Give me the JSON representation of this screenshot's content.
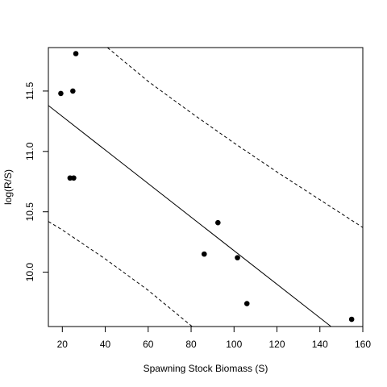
{
  "chart_data": {
    "type": "scatter",
    "title": "",
    "xlabel": "Spawning Stock Biomass (S)",
    "ylabel": "log(R/S)",
    "xlim": [
      13.5,
      160
    ],
    "ylim": [
      9.55,
      11.86
    ],
    "x_ticks": [
      20,
      40,
      60,
      80,
      100,
      120,
      140,
      160
    ],
    "x_tick_labels": [
      "20",
      "40",
      "60",
      "80",
      "100",
      "120",
      "140",
      "160"
    ],
    "y_ticks": [
      10.0,
      10.5,
      11.0,
      11.5
    ],
    "y_tick_labels": [
      "10.0",
      "10.5",
      "11.0",
      "11.5"
    ],
    "grid": false,
    "legend": "none",
    "points": [
      {
        "x": 19.3,
        "y": 11.48
      },
      {
        "x": 24.9,
        "y": 11.5
      },
      {
        "x": 26.3,
        "y": 11.81
      },
      {
        "x": 23.6,
        "y": 10.78
      },
      {
        "x": 25.3,
        "y": 10.78
      },
      {
        "x": 86.1,
        "y": 10.15
      },
      {
        "x": 92.5,
        "y": 10.41
      },
      {
        "x": 101.6,
        "y": 10.12
      },
      {
        "x": 106.0,
        "y": 9.74
      },
      {
        "x": 154.8,
        "y": 9.61
      }
    ],
    "fit_line": {
      "x": [
        13.5,
        145.2
      ],
      "y": [
        11.38,
        9.55
      ]
    },
    "upper_band": {
      "x": [
        41.0,
        60,
        80,
        100,
        120,
        140,
        160
      ],
      "y": [
        11.86,
        11.58,
        11.32,
        11.07,
        10.83,
        10.6,
        10.37
      ]
    },
    "lower_band": {
      "x": [
        13.5,
        20,
        40,
        60,
        80.5
      ],
      "y": [
        10.42,
        10.35,
        10.11,
        9.85,
        9.55
      ]
    }
  }
}
